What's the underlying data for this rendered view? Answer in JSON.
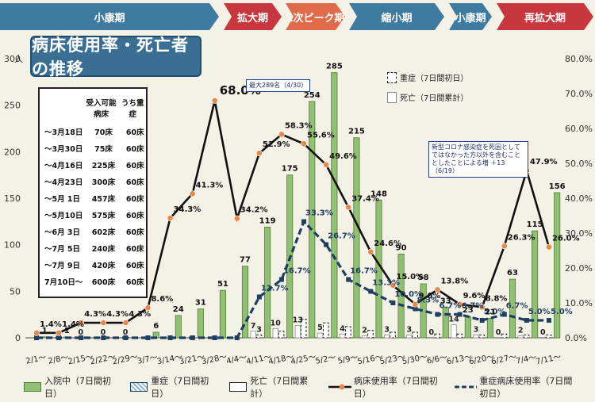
{
  "title": "病床使用率・死亡者の推移",
  "y_left_unit": "人",
  "phases": [
    {
      "label": "小康期",
      "color": "#3f7aa0",
      "x0": 0,
      "x1": 276
    },
    {
      "label": "拡大期",
      "color": "#c8373d",
      "x0": 282,
      "x1": 355
    },
    {
      "label": "1次ピーク期",
      "color": "#e06b4a",
      "x0": 360,
      "x1": 435
    },
    {
      "label": "縮小期",
      "color": "#3f7aa0",
      "x0": 440,
      "x1": 560
    },
    {
      "label": "小康期",
      "color": "#3f7aa0",
      "x0": 566,
      "x1": 620
    },
    {
      "label": "再拡大期",
      "color": "#c8373d",
      "x0": 626,
      "x1": 748
    }
  ],
  "bed_table": {
    "headers": [
      "受入可能病床",
      "うち重症"
    ],
    "rows": [
      [
        "～3月18日",
        "70床",
        "60床"
      ],
      [
        "～3月30日",
        "75床",
        "60床"
      ],
      [
        "～4月16日",
        "225床",
        "60床"
      ],
      [
        "～4月23日",
        "300床",
        "60床"
      ],
      [
        "～5月 1日",
        "457床",
        "60床"
      ],
      [
        "～5月10日",
        "575床",
        "60床"
      ],
      [
        "～6月 3日",
        "602床",
        "60床"
      ],
      [
        "～7月 5日",
        "240床",
        "60床"
      ],
      [
        "～7月 9日",
        "420床",
        "60床"
      ],
      [
        "7月10日～",
        "600床",
        "60床"
      ]
    ]
  },
  "annotations": {
    "max_note": "最大289名（4/30）",
    "death_note": "新型コロナ感染症を死因としてではなかった方以外を含むこととしたことによる増 ＋13（6/19）"
  },
  "right_legend": {
    "severe": "重症（7日間初日）",
    "death": "死亡（7日間累計）"
  },
  "legend": {
    "hosp": "入院中（7日間初日）",
    "severe": "重症（7日間初日）",
    "death": "死亡（7日間累計）",
    "bed_rate": "病床使用率（7日間初日）",
    "severe_rate": "重症病床使用率（7日間初日）"
  },
  "colors": {
    "bar": "#92c072",
    "bar_edge": "#4f7d34",
    "severe": "#8fb8d8",
    "line": "#111111",
    "dashed": "#1f3f62",
    "marker": "#e8884a"
  },
  "chart_data": {
    "type": "bar",
    "categories": [
      "2/1～",
      "2/8～",
      "2/15～",
      "2/22～",
      "2/29～",
      "3/7～",
      "3/14～",
      "3/21～",
      "3/28～",
      "4/4～",
      "4/11～",
      "4/18～",
      "4/25～",
      "5/2～",
      "5/9～",
      "5/16～",
      "5/23～",
      "5/30～",
      "6/6～",
      "6/13～",
      "6/20～",
      "6/27～",
      "7/4～",
      "7/11～"
    ],
    "y_left": {
      "min": 0,
      "max": 300,
      "ticks": [
        0,
        50,
        100,
        150,
        200,
        250,
        300
      ],
      "unit": "人"
    },
    "y_right": {
      "min": 0,
      "max": 80,
      "ticks": [
        "0.0%",
        "10.0%",
        "20.0%",
        "30.0%",
        "40.0%",
        "50.0%",
        "60.0%",
        "70.0%",
        "80.0%"
      ]
    },
    "series": [
      {
        "name": "入院中（7日間初日）",
        "axis": "left",
        "kind": "bar",
        "values": [
          1,
          1,
          0,
          0,
          0,
          6,
          24,
          31,
          51,
          77,
          119,
          175,
          254,
          285,
          215,
          148,
          90,
          58,
          33,
          23,
          21,
          63,
          115,
          156
        ],
        "labels": [
          "1",
          "1",
          "",
          "",
          "",
          "6",
          "24",
          "31",
          "51",
          "77",
          "119",
          "175",
          "254",
          "285",
          "215",
          "148",
          "90",
          "58",
          "33",
          "23",
          "21",
          "63",
          "115",
          "156"
        ]
      },
      {
        "name": "重症（7日間初日）",
        "axis": "left",
        "kind": "bar-outline",
        "values": [
          0,
          0,
          0,
          0,
          0,
          0,
          0,
          0,
          0,
          0,
          3,
          7,
          20,
          16,
          12,
          8,
          6,
          6,
          4,
          4,
          3,
          4,
          3,
          3
        ],
        "labels": [
          "",
          "",
          "0",
          "0",
          "0",
          "",
          "",
          "",
          "",
          "",
          "3",
          "",
          "",
          "",
          "",
          "",
          "",
          "",
          "",
          "",
          "",
          "",
          "",
          ""
        ]
      },
      {
        "name": "死亡（7日間累計）",
        "axis": "left",
        "kind": "bar-outline",
        "values": [
          0,
          0,
          0,
          0,
          0,
          0,
          0,
          0,
          0,
          0,
          7,
          10,
          13,
          5,
          4,
          2,
          3,
          3,
          0,
          14,
          3,
          0,
          2,
          0
        ],
        "labels": [
          "",
          "",
          "",
          "",
          "",
          "",
          "",
          "",
          "",
          "",
          "7",
          "10",
          "13",
          "5",
          "4",
          "2",
          "3",
          "3",
          "0",
          "14",
          "3",
          "0",
          "2",
          "0"
        ]
      },
      {
        "name": "病床使用率（7日間初日）",
        "axis": "right",
        "kind": "line",
        "values": [
          1.4,
          1.4,
          4.3,
          4.3,
          4.3,
          8.6,
          34.3,
          41.3,
          68.0,
          34.2,
          52.9,
          58.3,
          55.6,
          49.6,
          37.4,
          24.6,
          15.0,
          9.6,
          13.8,
          9.6,
          8.8,
          26.3,
          47.9,
          26.0
        ],
        "labels": [
          "1.4%",
          "1.4%",
          "4.3%",
          "4.3%",
          "4.3%",
          "8.6%",
          "34.3%",
          "41.3%",
          "68.0%",
          "34.2%",
          "52.9%",
          "58.3%",
          "55.6%",
          "49.6%",
          "37.4%",
          "24.6%",
          "15.0%",
          "9.6%",
          "13.8%",
          "9.6%",
          "8.8%",
          "26.3%",
          "47.9%",
          "26.0%"
        ]
      },
      {
        "name": "重症病床使用率（7日間初日）",
        "axis": "right",
        "kind": "dashed-line",
        "values": [
          0,
          0,
          0,
          0,
          0,
          0,
          0,
          0,
          0,
          0,
          11.7,
          16.7,
          33.3,
          26.7,
          16.7,
          13.3,
          10.0,
          8.3,
          6.7,
          6.7,
          5.0,
          6.7,
          5.0,
          5.0
        ],
        "labels": [
          "",
          "",
          "",
          "",
          "",
          "",
          "",
          "",
          "",
          "",
          "11.7%",
          "16.7%",
          "33.3%",
          "26.7%",
          "16.7%",
          "13.3%",
          "10.0%",
          "8.3%",
          "6.7%",
          "6.7%",
          "5.0%",
          "6.7%",
          "5.0%",
          "5.0%"
        ]
      }
    ]
  }
}
